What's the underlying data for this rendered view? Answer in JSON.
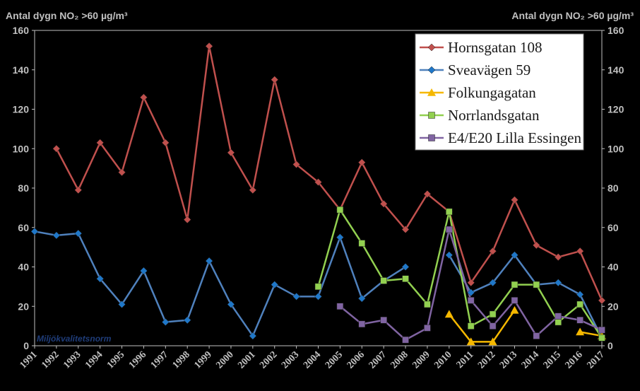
{
  "chart_data": {
    "type": "line",
    "ylabel_left": "Antal dygn NO₂ >60 µg/m³",
    "ylabel_right": "Antal dygn NO₂ >60 µg/m³",
    "ylim": [
      0,
      160
    ],
    "yticks": [
      0,
      20,
      40,
      60,
      80,
      100,
      120,
      140,
      160
    ],
    "x": [
      1991,
      1992,
      1993,
      1994,
      1995,
      1996,
      1997,
      1998,
      1999,
      2000,
      2001,
      2002,
      2003,
      2004,
      2005,
      2006,
      2007,
      2008,
      2009,
      2010,
      2011,
      2012,
      2013,
      2014,
      2015,
      2016,
      2017
    ],
    "grid": false,
    "legend_position": "top-right",
    "annotation": "Miljökvalitetsnorm",
    "series": [
      {
        "name": "Hornsgatan 108",
        "color": "#c0504d",
        "marker_color": "#c0504d",
        "marker": "diamond",
        "values": [
          null,
          100,
          79,
          103,
          88,
          126,
          103,
          64,
          152,
          98,
          79,
          135,
          92,
          83,
          69,
          93,
          72,
          59,
          77,
          68,
          32,
          48,
          74,
          51,
          45,
          48,
          23
        ]
      },
      {
        "name": "Sveavägen 59",
        "color": "#4f81bd",
        "marker_color": "#1f77c8",
        "marker": "diamond",
        "values": [
          58,
          56,
          57,
          34,
          21,
          38,
          12,
          13,
          43,
          21,
          5,
          31,
          25,
          25,
          55,
          24,
          33,
          40,
          null,
          46,
          27,
          32,
          46,
          31,
          32,
          26,
          4
        ]
      },
      {
        "name": "Folkungagatan",
        "color": "#f5b800",
        "marker_color": "#f5b800",
        "marker": "triangle",
        "values": [
          null,
          null,
          null,
          null,
          null,
          null,
          null,
          null,
          null,
          null,
          null,
          null,
          null,
          null,
          null,
          null,
          null,
          null,
          null,
          16,
          2,
          2,
          18,
          null,
          null,
          7,
          5
        ]
      },
      {
        "name": "Norrlandsgatan",
        "color": "#92d050",
        "marker_color": "#92d050",
        "marker": "square",
        "values": [
          null,
          null,
          null,
          null,
          null,
          null,
          null,
          null,
          null,
          null,
          null,
          null,
          null,
          30,
          69,
          52,
          33,
          34,
          21,
          68,
          10,
          16,
          31,
          31,
          12,
          21,
          4
        ]
      },
      {
        "name": "E4/E20 Lilla Essingen",
        "color": "#8064a2",
        "marker_color": "#8064a2",
        "marker": "square",
        "values": [
          null,
          null,
          null,
          null,
          null,
          null,
          null,
          null,
          null,
          null,
          null,
          null,
          null,
          null,
          20,
          11,
          13,
          3,
          9,
          59,
          23,
          10,
          23,
          5,
          15,
          13,
          8
        ]
      }
    ]
  }
}
